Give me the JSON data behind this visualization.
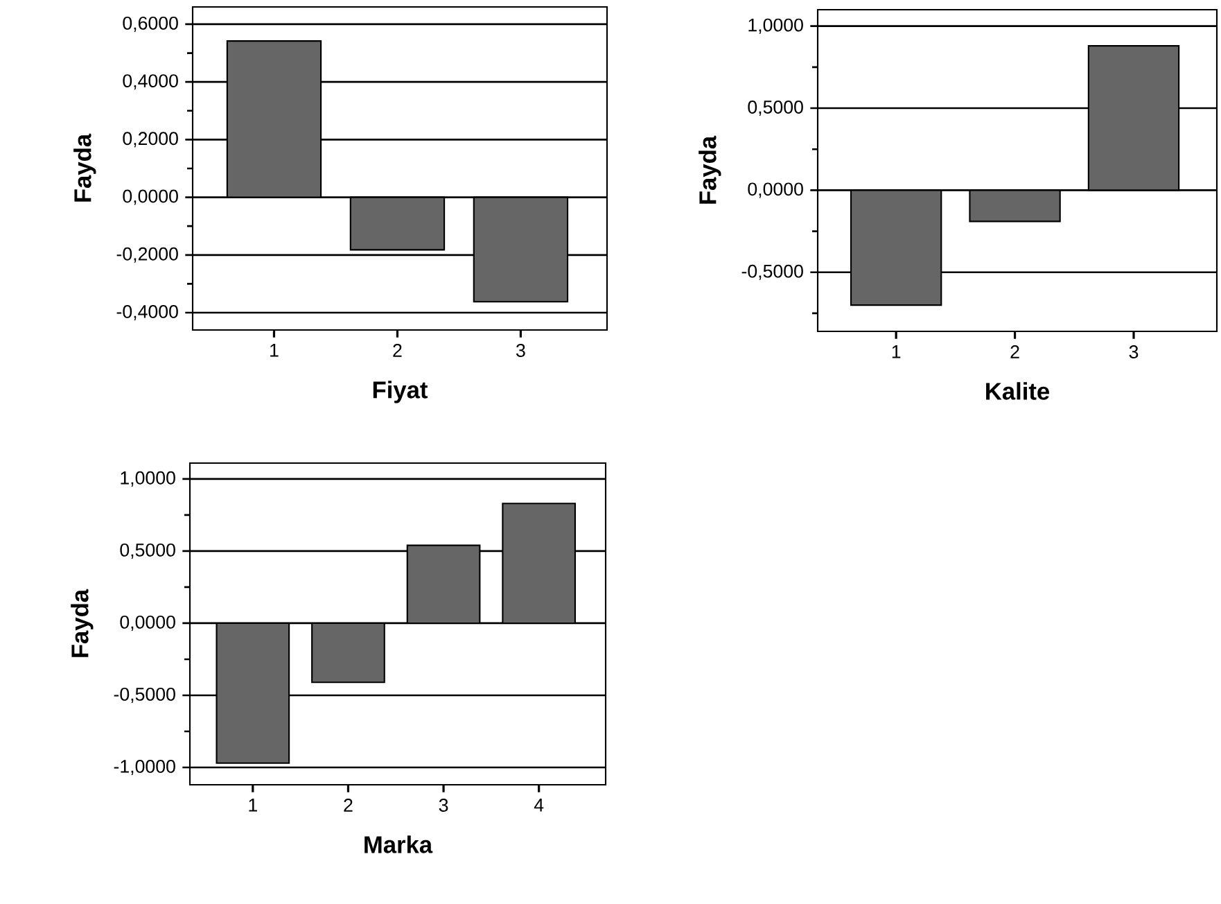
{
  "chart_data": [
    {
      "type": "bar",
      "xlabel": "Fiyat",
      "ylabel": "Fayda",
      "categories": [
        "1",
        "2",
        "3"
      ],
      "values": [
        0.542,
        -0.182,
        -0.362
      ],
      "color": "#666666",
      "ylim": [
        -0.46,
        0.66
      ],
      "yticks": [
        {
          "value": -0.4,
          "label": "-0,4000"
        },
        {
          "value": -0.3,
          "label": null
        },
        {
          "value": -0.2,
          "label": "-0,2000"
        },
        {
          "value": -0.1,
          "label": null
        },
        {
          "value": 0,
          "label": "0,0000"
        },
        {
          "value": 0.1,
          "label": null
        },
        {
          "value": 0.2,
          "label": "0,2000"
        },
        {
          "value": 0.3,
          "label": null
        },
        {
          "value": 0.4,
          "label": "0,4000"
        },
        {
          "value": 0.5,
          "label": null
        },
        {
          "value": 0.6,
          "label": "0,6000"
        }
      ],
      "grid": "y"
    },
    {
      "type": "bar",
      "xlabel": "Kalite",
      "ylabel": "Fayda",
      "categories": [
        "1",
        "2",
        "3"
      ],
      "values": [
        -0.7,
        -0.19,
        0.88
      ],
      "color": "#666666",
      "ylim": [
        -0.86,
        1.1
      ],
      "yticks": [
        {
          "value": -0.75,
          "label": null
        },
        {
          "value": -0.5,
          "label": "-0,5000"
        },
        {
          "value": -0.25,
          "label": null
        },
        {
          "value": 0,
          "label": "0,0000"
        },
        {
          "value": 0.25,
          "label": null
        },
        {
          "value": 0.5,
          "label": "0,5000"
        },
        {
          "value": 0.75,
          "label": null
        },
        {
          "value": 1,
          "label": "1,0000"
        }
      ],
      "grid": "y"
    },
    {
      "type": "bar",
      "xlabel": "Marka",
      "ylabel": "Fayda",
      "categories": [
        "1",
        "2",
        "3",
        "4"
      ],
      "values": [
        -0.97,
        -0.41,
        0.54,
        0.83
      ],
      "color": "#666666",
      "ylim": [
        -1.12,
        1.11
      ],
      "yticks": [
        {
          "value": -1,
          "label": "-1,0000"
        },
        {
          "value": -0.75,
          "label": null
        },
        {
          "value": -0.5,
          "label": "-0,5000"
        },
        {
          "value": -0.25,
          "label": null
        },
        {
          "value": 0,
          "label": "0,0000"
        },
        {
          "value": 0.25,
          "label": null
        },
        {
          "value": 0.5,
          "label": "0,5000"
        },
        {
          "value": 0.75,
          "label": null
        },
        {
          "value": 1,
          "label": "1,0000"
        }
      ],
      "grid": "y"
    }
  ]
}
